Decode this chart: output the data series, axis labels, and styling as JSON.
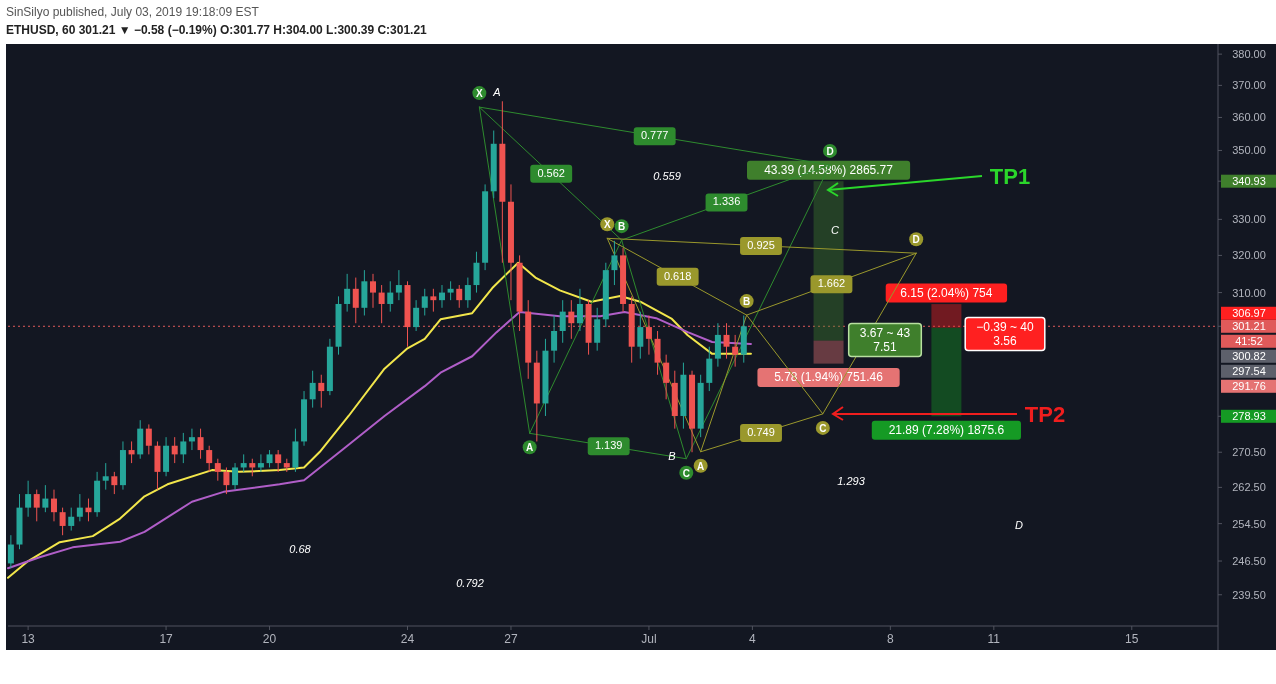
{
  "chart_data": {
    "type": "candlestick",
    "title": "SinSilyo published, July 03, 2019 19:18:09 EST",
    "subtitle": "ETHUSD, 60  301.21 ▼ −0.58 (−0.19%) O:301.77 H:304.00 L:300.39 C:301.21",
    "log": "y",
    "xlim": [
      "2019-06-12T10:00",
      "2019-07-17T12:00"
    ],
    "ylim": [
      233.2,
      383.3
    ],
    "xticks": [
      {
        "value": "2019-06-13",
        "label": "13"
      },
      {
        "value": "2019-06-17",
        "label": "17"
      },
      {
        "value": "2019-06-20",
        "label": "20"
      },
      {
        "value": "2019-06-24",
        "label": "24"
      },
      {
        "value": "2019-06-27",
        "label": "27"
      },
      {
        "value": "2019-07-01",
        "label": "Jul"
      },
      {
        "value": "2019-07-04",
        "label": "4"
      },
      {
        "value": "2019-07-08",
        "label": "8"
      },
      {
        "value": "2019-07-11",
        "label": "11"
      },
      {
        "value": "2019-07-15",
        "label": "15"
      }
    ],
    "yticks": [
      {
        "value": 380,
        "label": "380.00"
      },
      {
        "value": 370,
        "label": "370.00"
      },
      {
        "value": 360,
        "label": "360.00"
      },
      {
        "value": 350,
        "label": "350.00"
      },
      340.93,
      {
        "value": 330,
        "label": "330.00"
      },
      {
        "value": 320,
        "label": "320.00"
      },
      {
        "value": 310,
        "label": "310.00"
      },
      301.21,
      278.93,
      {
        "value": 270.5,
        "label": "270.50"
      },
      {
        "value": 262.5,
        "label": "262.50"
      },
      {
        "value": 254.5,
        "label": "254.50"
      },
      {
        "value": 246.5,
        "label": "246.50"
      },
      {
        "value": 239.5,
        "label": "239.50"
      }
    ],
    "x": [
      "2019-06-12T12:00",
      "2019-06-12T18:00",
      "2019-06-13T00:00",
      "2019-06-13T06:00",
      "2019-06-13T12:00",
      "2019-06-13T18:00",
      "2019-06-14T00:00",
      "2019-06-14T06:00",
      "2019-06-14T12:00",
      "2019-06-14T18:00",
      "2019-06-15T00:00",
      "2019-06-15T06:00",
      "2019-06-15T12:00",
      "2019-06-15T18:00",
      "2019-06-16T00:00",
      "2019-06-16T06:00",
      "2019-06-16T12:00",
      "2019-06-16T18:00",
      "2019-06-17T00:00",
      "2019-06-17T06:00",
      "2019-06-17T12:00",
      "2019-06-17T18:00",
      "2019-06-18T00:00",
      "2019-06-18T06:00",
      "2019-06-18T12:00",
      "2019-06-18T18:00",
      "2019-06-19T00:00",
      "2019-06-19T06:00",
      "2019-06-19T12:00",
      "2019-06-19T18:00",
      "2019-06-20T00:00",
      "2019-06-20T06:00",
      "2019-06-20T12:00",
      "2019-06-20T18:00",
      "2019-06-21T00:00",
      "2019-06-21T06:00",
      "2019-06-21T12:00",
      "2019-06-21T18:00",
      "2019-06-22T00:00",
      "2019-06-22T06:00",
      "2019-06-22T12:00",
      "2019-06-22T18:00",
      "2019-06-23T00:00",
      "2019-06-23T06:00",
      "2019-06-23T12:00",
      "2019-06-23T18:00",
      "2019-06-24T00:00",
      "2019-06-24T06:00",
      "2019-06-24T12:00",
      "2019-06-24T18:00",
      "2019-06-25T00:00",
      "2019-06-25T06:00",
      "2019-06-25T12:00",
      "2019-06-25T18:00",
      "2019-06-26T00:00",
      "2019-06-26T06:00",
      "2019-06-26T12:00",
      "2019-06-26T18:00",
      "2019-06-27T00:00",
      "2019-06-27T06:00",
      "2019-06-27T12:00",
      "2019-06-27T18:00",
      "2019-06-28T00:00",
      "2019-06-28T06:00",
      "2019-06-28T12:00",
      "2019-06-28T18:00",
      "2019-06-29T00:00",
      "2019-06-29T06:00",
      "2019-06-29T12:00",
      "2019-06-29T18:00",
      "2019-06-30T00:00",
      "2019-06-30T06:00",
      "2019-06-30T12:00",
      "2019-06-30T18:00",
      "2019-07-01T00:00",
      "2019-07-01T06:00",
      "2019-07-01T12:00",
      "2019-07-01T18:00",
      "2019-07-02T00:00",
      "2019-07-02T06:00",
      "2019-07-02T12:00",
      "2019-07-02T18:00",
      "2019-07-03T00:00",
      "2019-07-03T06:00",
      "2019-07-03T12:00",
      "2019-07-03T18:00"
    ],
    "ohlc": [
      [
        246,
        252,
        245,
        250
      ],
      [
        250,
        261,
        249,
        258
      ],
      [
        258,
        264,
        256,
        261
      ],
      [
        261,
        262,
        255,
        258
      ],
      [
        258,
        263,
        257,
        260
      ],
      [
        260,
        262,
        255,
        257
      ],
      [
        257,
        258,
        252,
        254
      ],
      [
        254,
        258,
        253,
        256
      ],
      [
        256,
        261,
        255,
        258
      ],
      [
        258,
        260,
        255,
        257
      ],
      [
        257,
        266,
        256,
        264
      ],
      [
        264,
        268,
        262,
        265
      ],
      [
        265,
        266,
        261,
        263
      ],
      [
        263,
        273,
        262,
        271
      ],
      [
        271,
        273,
        268,
        270
      ],
      [
        270,
        278,
        269,
        276
      ],
      [
        276,
        277,
        270,
        272
      ],
      [
        272,
        273,
        262,
        266
      ],
      [
        266,
        274,
        265,
        272
      ],
      [
        272,
        274,
        268,
        270
      ],
      [
        270,
        275,
        268,
        273
      ],
      [
        273,
        276,
        271,
        274
      ],
      [
        274,
        276,
        269,
        271
      ],
      [
        271,
        272,
        266,
        268
      ],
      [
        268,
        269,
        264,
        266
      ],
      [
        266,
        267,
        261,
        263
      ],
      [
        263,
        268,
        262,
        267
      ],
      [
        267,
        270,
        266,
        268
      ],
      [
        268,
        269,
        265,
        267
      ],
      [
        267,
        270,
        266,
        268
      ],
      [
        268,
        271,
        267,
        270
      ],
      [
        270,
        271,
        266,
        268
      ],
      [
        268,
        269,
        266,
        267
      ],
      [
        267,
        276,
        266,
        273
      ],
      [
        273,
        285,
        272,
        283
      ],
      [
        283,
        290,
        281,
        287
      ],
      [
        287,
        289,
        281,
        285
      ],
      [
        285,
        298,
        284,
        296
      ],
      [
        296,
        309,
        294,
        307
      ],
      [
        307,
        315,
        305,
        311
      ],
      [
        311,
        314,
        302,
        306
      ],
      [
        306,
        316,
        304,
        313
      ],
      [
        313,
        315,
        306,
        310
      ],
      [
        310,
        312,
        302,
        307
      ],
      [
        307,
        313,
        305,
        310
      ],
      [
        310,
        316,
        308,
        312
      ],
      [
        312,
        313,
        296,
        301
      ],
      [
        301,
        308,
        300,
        306
      ],
      [
        306,
        311,
        304,
        309
      ],
      [
        309,
        311,
        305,
        308
      ],
      [
        308,
        312,
        306,
        310
      ],
      [
        310,
        313,
        308,
        311
      ],
      [
        311,
        312,
        306,
        308
      ],
      [
        308,
        314,
        306,
        312
      ],
      [
        312,
        321,
        310,
        318
      ],
      [
        318,
        340,
        316,
        338
      ],
      [
        338,
        356,
        336,
        352
      ],
      [
        352,
        365,
        318,
        335
      ],
      [
        335,
        340,
        308,
        318
      ],
      [
        318,
        320,
        300,
        305
      ],
      [
        305,
        308,
        288,
        292
      ],
      [
        292,
        295,
        273,
        282
      ],
      [
        282,
        298,
        279,
        295
      ],
      [
        295,
        304,
        292,
        300
      ],
      [
        300,
        308,
        297,
        305
      ],
      [
        305,
        308,
        298,
        302
      ],
      [
        302,
        311,
        300,
        307
      ],
      [
        307,
        308,
        294,
        297
      ],
      [
        297,
        306,
        295,
        303
      ],
      [
        303,
        318,
        301,
        316
      ],
      [
        316,
        324,
        312,
        320
      ],
      [
        320,
        322,
        305,
        307
      ],
      [
        307,
        309,
        292,
        296
      ],
      [
        296,
        305,
        293,
        301
      ],
      [
        301,
        304,
        294,
        298
      ],
      [
        298,
        300,
        289,
        292
      ],
      [
        292,
        294,
        283,
        287
      ],
      [
        287,
        290,
        276,
        279
      ],
      [
        279,
        292,
        276,
        289
      ],
      [
        289,
        290,
        270.5,
        276
      ],
      [
        276,
        289,
        274,
        287
      ],
      [
        287,
        296,
        285,
        293
      ],
      [
        293,
        302,
        291,
        299
      ],
      [
        299,
        302,
        293,
        296
      ],
      [
        296,
        299,
        291,
        294
      ],
      [
        294,
        304,
        292,
        301.21
      ]
    ],
    "series": [
      {
        "type": "line",
        "color": "#f2e64b",
        "x": [
          "2019-06-12T10:00",
          "2019-06-13T00:00",
          "2019-06-13T22:00",
          "2019-06-14T21:00",
          "2019-06-15T16:00",
          "2019-06-16T09:00",
          "2019-06-17T01:00",
          "2019-06-18T08:00",
          "2019-06-19T03:00",
          "2019-06-20T07:00",
          "2019-06-21T00:00",
          "2019-06-21T11:00",
          "2019-06-22T07:00",
          "2019-06-23T08:00",
          "2019-06-24T00:00",
          "2019-06-24T12:00",
          "2019-06-24T23:00",
          "2019-06-25T21:00",
          "2019-06-26T11:00",
          "2019-06-27T05:00",
          "2019-06-27T17:00",
          "2019-06-28T10:00",
          "2019-06-29T08:00",
          "2019-06-30T04:00",
          "2019-06-30T18:00",
          "2019-07-01T16:00",
          "2019-07-02T03:00",
          "2019-07-02T20:00",
          "2019-07-03T23:00"
        ],
        "values": [
          243,
          246.5,
          250.5,
          251.8,
          255.6,
          260.5,
          263.2,
          266.4,
          266,
          266.4,
          267,
          270.6,
          279,
          290.5,
          295.6,
          298,
          303,
          304.6,
          311.2,
          318,
          314,
          310.6,
          307.6,
          309.1,
          307.6,
          303.1,
          298.9,
          294.2,
          294.2
        ]
      },
      {
        "type": "line",
        "color": "#b05ec8",
        "x": [
          "2019-06-12T10:00",
          "2019-06-13T08:00",
          "2019-06-14T07:00",
          "2019-06-15T16:00",
          "2019-06-16T09:00",
          "2019-06-17T18:00",
          "2019-06-18T16:00",
          "2019-06-20T07:00",
          "2019-06-21T00:00",
          "2019-06-22T04:00",
          "2019-06-23T08:00",
          "2019-06-24T12:00",
          "2019-06-24T23:00",
          "2019-06-25T21:00",
          "2019-06-26T14:00",
          "2019-06-27T06:00",
          "2019-06-28T10:00",
          "2019-06-29T14:00",
          "2019-06-30T07:00",
          "2019-07-01T05:00",
          "2019-07-02T03:00",
          "2019-07-02T20:00",
          "2019-07-03T23:00"
        ],
        "values": [
          245,
          247.3,
          249.4,
          250.6,
          252.7,
          259.3,
          261.5,
          263.2,
          264.1,
          271.4,
          279,
          286.2,
          289.5,
          293.6,
          299.7,
          304.9,
          303.8,
          303.8,
          304.9,
          303.3,
          299.7,
          297.2,
          296.7
        ]
      },
      {
        "type": "line",
        "color": "#2e8b2e",
        "x": [
          "2019-06-26T02:00",
          "2019-06-27T13:00",
          "2019-06-30T05:00",
          "2019-07-02T02:00",
          "2019-07-06T06:00"
        ],
        "values": [
          363.2,
          274.9,
          324.2,
          269,
          345.7
        ],
        "value_labels": [
          "X",
          "A",
          "B",
          "C",
          "D"
        ]
      },
      {
        "type": "line",
        "color": "#2e8b2e",
        "x": [
          "2019-06-26T02:00",
          "2019-06-30T05:00"
        ],
        "values": [
          363.2,
          324.2
        ]
      },
      {
        "type": "line",
        "color": "#2e8b2e",
        "x": [
          "2019-06-30T05:00",
          "2019-07-06T06:00"
        ],
        "values": [
          324.2,
          345.7
        ]
      },
      {
        "type": "line",
        "color": "#2e8b2e",
        "x": [
          "2019-06-27T13:00",
          "2019-07-02T02:00"
        ],
        "values": [
          274.9,
          269
        ]
      },
      {
        "type": "line",
        "color": "#2e8b2e",
        "x": [
          "2019-06-26T02:00",
          "2019-07-06T06:00"
        ],
        "values": [
          363.2,
          345.7
        ]
      },
      {
        "type": "line",
        "color": "#9a982c",
        "x": [
          "2019-06-29T19:00",
          "2019-07-02T12:00",
          "2019-07-03T20:00",
          "2019-07-06T01:00",
          "2019-07-08T18:00"
        ],
        "values": [
          324.7,
          270.6,
          304.1,
          279.5,
          320.6
        ],
        "value_labels": [
          "X",
          "A",
          "B",
          "C",
          "D"
        ]
      },
      {
        "type": "line",
        "color": "#9a982c",
        "x": [
          "2019-06-29T19:00",
          "2019-07-03T20:00"
        ],
        "values": [
          324.7,
          304.1
        ]
      },
      {
        "type": "line",
        "color": "#9a982c",
        "x": [
          "2019-07-03T20:00",
          "2019-07-08T18:00"
        ],
        "values": [
          304.1,
          320.6
        ]
      },
      {
        "type": "line",
        "color": "#9a982c",
        "x": [
          "2019-07-02T12:00",
          "2019-07-06T01:00"
        ],
        "values": [
          270.6,
          279.5
        ]
      },
      {
        "type": "line",
        "color": "#9a982c",
        "x": [
          "2019-06-29T19:00",
          "2019-07-08T18:00"
        ],
        "values": [
          324.7,
          320.6
        ]
      },
      {
        "type": "bar",
        "color": "#3f7f2c",
        "x": [
          "2019-07-06T05:00"
        ],
        "base": [
          297.54
        ],
        "values": [
          43.39
        ],
        "value_labels": [
          "43.39 (14.58%) 2865.77"
        ]
      },
      {
        "type": "bar",
        "color": "#e57373",
        "x": [
          "2019-07-06T05:00"
        ],
        "base": [
          291.76
        ],
        "values": [
          5.78
        ],
        "value_labels": [
          "5.78 (1.94%) 751.46"
        ]
      },
      {
        "type": "bar",
        "color": "#ff2020",
        "x": [
          "2019-07-09T15:00"
        ],
        "base": [
          300.82
        ],
        "values": [
          6.15
        ],
        "value_labels": [
          "6.15 (2.04%) 754"
        ]
      },
      {
        "type": "bar",
        "color": "#159a24",
        "x": [
          "2019-07-09T15:00"
        ],
        "base": [
          278.93
        ],
        "values": [
          21.89
        ],
        "value_labels": [
          "21.89 (7.28%) 1875.6"
        ]
      }
    ],
    "ref_lines": [
      {
        "axis": "y",
        "value": 301.21,
        "color": "#e05a5a",
        "line_style": "dotted"
      }
    ],
    "annotations": [
      "A",
      "B",
      "C",
      "D",
      "0.68",
      "0.792",
      "0.559",
      "1.293",
      "TP1",
      "TP2",
      "3.67 ~ 43\n7.51",
      "−0.39 ~ 40\n3.56",
      "41:52",
      "306.97",
      "300.82",
      "297.54",
      "291.76",
      {
        "text": "0.562",
        "x": "2019-06-28T04:00",
        "y": 343.1
      },
      {
        "text": "1.336",
        "x": "2019-07-03T06:00",
        "y": 334.8
      },
      {
        "text": "1.139",
        "x": "2019-06-29T20:00",
        "y": 271.9
      },
      {
        "text": "0.777",
        "x": "2019-07-01T04:00",
        "y": 354.3
      },
      {
        "text": "0.618",
        "x": "2019-07-01T20:00",
        "y": 314.2
      },
      {
        "text": "1.662",
        "x": "2019-07-06T07:00",
        "y": 312.2
      },
      {
        "text": "0.749",
        "x": "2019-07-04T06:00",
        "y": 275
      },
      {
        "text": "0.925",
        "x": "2019-07-04T06:00",
        "y": 322.6
      }
    ]
  }
}
